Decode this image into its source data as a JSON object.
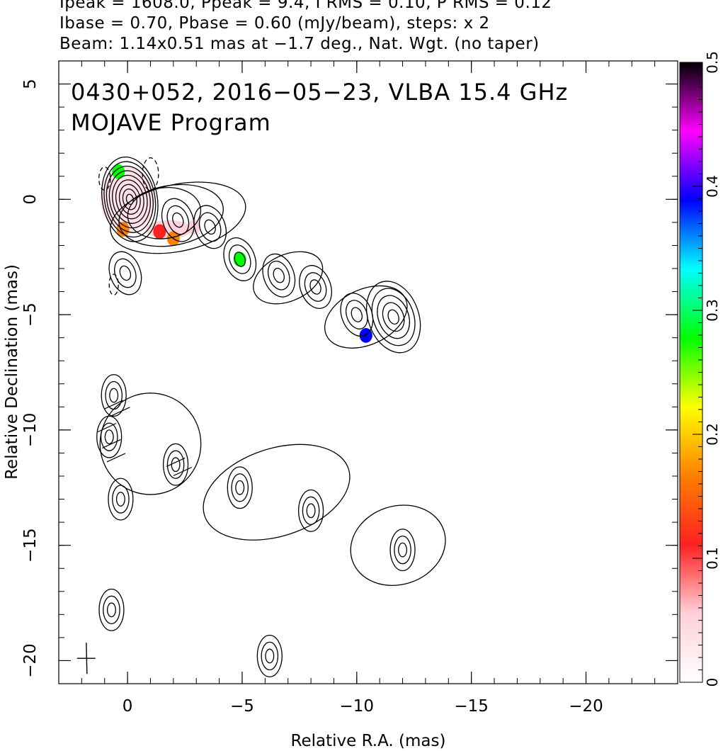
{
  "header": {
    "line1": "Ipeak = 1608.0, Ppeak = 9.4, I RMS = 0.10, P RMS = 0.12",
    "line2": "Ibase = 0.70, Pbase = 0.60 (mJy/beam), steps: x 2",
    "line3": "Beam: 1.14x0.51 mas at −1.7 deg., Nat. Wgt. (no taper)"
  },
  "chart_data": {
    "type": "heatmap",
    "title": "0430+052, 2016−05−23, VLBA 15.4 GHz",
    "subtitle": "MOJAVE Program",
    "xlabel": "Relative R.A. (mas)",
    "ylabel": "Relative Declination (mas)",
    "xlim": [
      3,
      -24
    ],
    "ylim": [
      -21,
      6
    ],
    "x_ticks": [
      0,
      -5,
      -10,
      -15,
      -20
    ],
    "x_tick_labels": [
      "0",
      "−5",
      "−10",
      "−15",
      "−20"
    ],
    "y_ticks": [
      5,
      0,
      -5,
      -10,
      -15,
      -20
    ],
    "y_tick_labels": [
      "5",
      "0",
      "−5",
      "−10",
      "−15",
      "−20"
    ],
    "colorbar": {
      "min": 0,
      "max": 0.5,
      "ticks": [
        0,
        0.1,
        0.2,
        0.3,
        0.4,
        0.5
      ],
      "tick_labels": [
        "0",
        "0.1",
        "0.2",
        "0.3",
        "0.4",
        "0.5"
      ],
      "stops": [
        "#ffffff",
        "#ffd0d8",
        "#ff2020",
        "#ff8000",
        "#ffff00",
        "#00ff00",
        "#00ffff",
        "#0000ff",
        "#ff00ff",
        "#000000"
      ]
    },
    "total_intensity_components": [
      {
        "x": 0,
        "y": 0,
        "flux_level": "peak"
      },
      {
        "x": -2.2,
        "y": -0.9
      },
      {
        "x": -3.6,
        "y": -1.2
      },
      {
        "x": -4.9,
        "y": -2.6
      },
      {
        "x": -6.6,
        "y": -3.3
      },
      {
        "x": -8.2,
        "y": -3.8
      },
      {
        "x": -10.0,
        "y": -5.0
      },
      {
        "x": -11.6,
        "y": -5.1
      },
      {
        "x": 0.1,
        "y": -3.2
      }
    ],
    "polarized_intensity_components": [
      {
        "x": 0.8,
        "y": -10.3
      },
      {
        "x": 0.6,
        "y": -8.5
      },
      {
        "x": -2.1,
        "y": -11.5
      },
      {
        "x": -4.9,
        "y": -12.5
      },
      {
        "x": -8.0,
        "y": -13.5
      },
      {
        "x": -12.0,
        "y": -15.2
      },
      {
        "x": 0.3,
        "y": -13.0
      },
      {
        "x": 0.7,
        "y": -17.8
      },
      {
        "x": -6.2,
        "y": -19.8
      }
    ],
    "fractional_polarization_patches": [
      {
        "x": 0.4,
        "y": 1.2,
        "value": 0.3
      },
      {
        "x": 0.2,
        "y": -1.3,
        "value": 0.15
      },
      {
        "x": -2.0,
        "y": -1.7,
        "value": 0.18
      },
      {
        "x": -1.4,
        "y": -1.4,
        "value": 0.1
      },
      {
        "x": -4.9,
        "y": -2.6,
        "value": 0.27
      },
      {
        "x": -10.4,
        "y": -5.9,
        "value": 0.4
      },
      {
        "x": -2.9,
        "y": -1.2,
        "value": 0.03
      }
    ]
  }
}
